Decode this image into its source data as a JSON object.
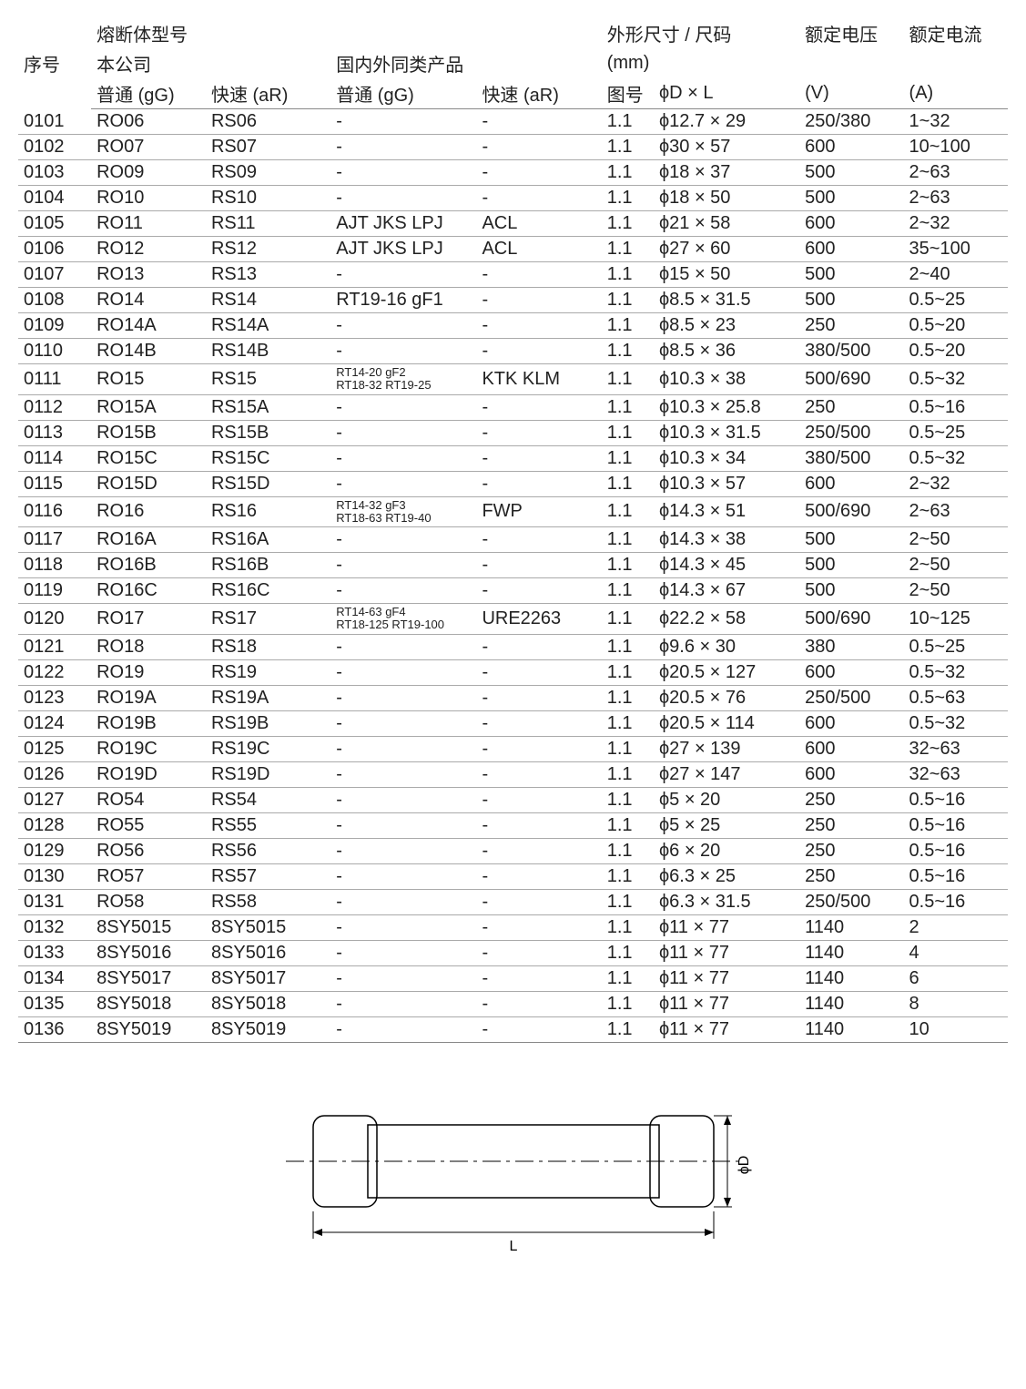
{
  "headers": {
    "seq": "序号",
    "model": "熔断体型号",
    "company": "本公司",
    "domestic": "国内外同类产品",
    "gg": "普通 (gG)",
    "ar": "快速 (aR)",
    "dgg": "普通 (gG)",
    "dar": "快速 (aR)",
    "outline": "外形尺寸 / 尺码",
    "mm": "(mm)",
    "fig": "图号",
    "dxl": "ϕD × L",
    "voltage": "额定电压",
    "vunit": "(V)",
    "current": "额定电流",
    "aunit": "(A)"
  },
  "diagram": {
    "L_label": "L",
    "D_label": "ϕD"
  },
  "rows": [
    {
      "seq": "0101",
      "gg": "RO06",
      "ar": "RS06",
      "dgg": "-",
      "dar": "-",
      "fig": "1.1",
      "dim": "ϕ12.7 × 29",
      "v": "250/380",
      "a": "1~32"
    },
    {
      "seq": "0102",
      "gg": "RO07",
      "ar": "RS07",
      "dgg": "-",
      "dar": "-",
      "fig": "1.1",
      "dim": "ϕ30 × 57",
      "v": "600",
      "a": "10~100"
    },
    {
      "seq": "0103",
      "gg": "RO09",
      "ar": "RS09",
      "dgg": "-",
      "dar": "-",
      "fig": "1.1",
      "dim": "ϕ18 × 37",
      "v": "500",
      "a": "2~63"
    },
    {
      "seq": "0104",
      "gg": "RO10",
      "ar": "RS10",
      "dgg": "-",
      "dar": "-",
      "fig": "1.1",
      "dim": "ϕ18 × 50",
      "v": "500",
      "a": "2~63"
    },
    {
      "seq": "0105",
      "gg": "RO11",
      "ar": "RS11",
      "dgg": "AJT JKS LPJ",
      "dar": "ACL",
      "fig": "1.1",
      "dim": "ϕ21 × 58",
      "v": "600",
      "a": "2~32"
    },
    {
      "seq": "0106",
      "gg": "RO12",
      "ar": "RS12",
      "dgg": "AJT JKS LPJ",
      "dar": "ACL",
      "fig": "1.1",
      "dim": "ϕ27 × 60",
      "v": "600",
      "a": "35~100"
    },
    {
      "seq": "0107",
      "gg": "RO13",
      "ar": "RS13",
      "dgg": "-",
      "dar": "-",
      "fig": "1.1",
      "dim": "ϕ15 × 50",
      "v": "500",
      "a": "2~40"
    },
    {
      "seq": "0108",
      "gg": "RO14",
      "ar": "RS14",
      "dgg": "RT19-16 gF1",
      "dar": "-",
      "fig": "1.1",
      "dim": "ϕ8.5 × 31.5",
      "v": "500",
      "a": "0.5~25"
    },
    {
      "seq": "0109",
      "gg": "RO14A",
      "ar": "RS14A",
      "dgg": "-",
      "dar": "-",
      "fig": "1.1",
      "dim": "ϕ8.5 × 23",
      "v": "250",
      "a": "0.5~20"
    },
    {
      "seq": "0110",
      "gg": "RO14B",
      "ar": "RS14B",
      "dgg": "-",
      "dar": "-",
      "fig": "1.1",
      "dim": "ϕ8.5 × 36",
      "v": "380/500",
      "a": "0.5~20"
    },
    {
      "seq": "0111",
      "gg": "RO15",
      "ar": "RS15",
      "dgg": "RT14-20 gF2\nRT18-32 RT19-25",
      "dgg_small": true,
      "dar": "KTK KLM",
      "fig": "1.1",
      "dim": "ϕ10.3 × 38",
      "v": "500/690",
      "a": "0.5~32"
    },
    {
      "seq": "0112",
      "gg": "RO15A",
      "ar": "RS15A",
      "dgg": "-",
      "dar": "-",
      "fig": "1.1",
      "dim": "ϕ10.3 × 25.8",
      "v": "250",
      "a": "0.5~16"
    },
    {
      "seq": "0113",
      "gg": "RO15B",
      "ar": "RS15B",
      "dgg": "-",
      "dar": "-",
      "fig": "1.1",
      "dim": "ϕ10.3 × 31.5",
      "v": "250/500",
      "a": "0.5~25"
    },
    {
      "seq": "0114",
      "gg": "RO15C",
      "ar": "RS15C",
      "dgg": "-",
      "dar": "-",
      "fig": "1.1",
      "dim": "ϕ10.3 × 34",
      "v": "380/500",
      "a": "0.5~32"
    },
    {
      "seq": "0115",
      "gg": "RO15D",
      "ar": "RS15D",
      "dgg": "-",
      "dar": "-",
      "fig": "1.1",
      "dim": "ϕ10.3 × 57",
      "v": "600",
      "a": "2~32"
    },
    {
      "seq": "0116",
      "gg": "RO16",
      "ar": "RS16",
      "dgg": "RT14-32 gF3\nRT18-63 RT19-40",
      "dgg_small": true,
      "dar": "FWP",
      "fig": "1.1",
      "dim": "ϕ14.3 × 51",
      "v": "500/690",
      "a": "2~63"
    },
    {
      "seq": "0117",
      "gg": "RO16A",
      "ar": "RS16A",
      "dgg": "-",
      "dar": "-",
      "fig": "1.1",
      "dim": "ϕ14.3 × 38",
      "v": "500",
      "a": "2~50"
    },
    {
      "seq": "0118",
      "gg": "RO16B",
      "ar": "RS16B",
      "dgg": "-",
      "dar": "-",
      "fig": "1.1",
      "dim": "ϕ14.3 × 45",
      "v": "500",
      "a": "2~50"
    },
    {
      "seq": "0119",
      "gg": "RO16C",
      "ar": "RS16C",
      "dgg": "-",
      "dar": "-",
      "fig": "1.1",
      "dim": "ϕ14.3 × 67",
      "v": "500",
      "a": "2~50"
    },
    {
      "seq": "0120",
      "gg": "RO17",
      "ar": "RS17",
      "dgg": "RT14-63 gF4\nRT18-125 RT19-100",
      "dgg_small": true,
      "dar": "URE2263",
      "fig": "1.1",
      "dim": "ϕ22.2 × 58",
      "v": "500/690",
      "a": "10~125"
    },
    {
      "seq": "0121",
      "gg": "RO18",
      "ar": "RS18",
      "dgg": "-",
      "dar": "-",
      "fig": "1.1",
      "dim": "ϕ9.6 × 30",
      "v": "380",
      "a": "0.5~25"
    },
    {
      "seq": "0122",
      "gg": "RO19",
      "ar": "RS19",
      "dgg": "-",
      "dar": "-",
      "fig": "1.1",
      "dim": "ϕ20.5 × 127",
      "v": "600",
      "a": "0.5~32"
    },
    {
      "seq": "0123",
      "gg": "RO19A",
      "ar": "RS19A",
      "dgg": "-",
      "dar": "-",
      "fig": "1.1",
      "dim": "ϕ20.5 × 76",
      "v": "250/500",
      "a": "0.5~63"
    },
    {
      "seq": "0124",
      "gg": "RO19B",
      "ar": "RS19B",
      "dgg": "-",
      "dar": "-",
      "fig": "1.1",
      "dim": "ϕ20.5 × 114",
      "v": "600",
      "a": "0.5~32"
    },
    {
      "seq": "0125",
      "gg": "RO19C",
      "ar": "RS19C",
      "dgg": "-",
      "dar": "-",
      "fig": "1.1",
      "dim": "ϕ27 × 139",
      "v": "600",
      "a": "32~63"
    },
    {
      "seq": "0126",
      "gg": "RO19D",
      "ar": "RS19D",
      "dgg": "-",
      "dar": "-",
      "fig": "1.1",
      "dim": "ϕ27 × 147",
      "v": "600",
      "a": "32~63"
    },
    {
      "seq": "0127",
      "gg": "RO54",
      "ar": "RS54",
      "dgg": "-",
      "dar": "-",
      "fig": "1.1",
      "dim": "ϕ5 × 20",
      "v": "250",
      "a": "0.5~16"
    },
    {
      "seq": "0128",
      "gg": "RO55",
      "ar": "RS55",
      "dgg": "-",
      "dar": "-",
      "fig": "1.1",
      "dim": "ϕ5 × 25",
      "v": "250",
      "a": "0.5~16"
    },
    {
      "seq": "0129",
      "gg": "RO56",
      "ar": "RS56",
      "dgg": "-",
      "dar": "-",
      "fig": "1.1",
      "dim": "ϕ6 × 20",
      "v": "250",
      "a": "0.5~16"
    },
    {
      "seq": "0130",
      "gg": "RO57",
      "ar": "RS57",
      "dgg": "-",
      "dar": "-",
      "fig": "1.1",
      "dim": "ϕ6.3 × 25",
      "v": "250",
      "a": "0.5~16"
    },
    {
      "seq": "0131",
      "gg": "RO58",
      "ar": "RS58",
      "dgg": "-",
      "dar": "-",
      "fig": "1.1",
      "dim": "ϕ6.3 × 31.5",
      "v": "250/500",
      "a": "0.5~16"
    },
    {
      "seq": "0132",
      "gg": "8SY5015",
      "ar": "8SY5015",
      "dgg": "-",
      "dar": "-",
      "fig": "1.1",
      "dim": "ϕ11 × 77",
      "v": "1140",
      "a": "2"
    },
    {
      "seq": "0133",
      "gg": "8SY5016",
      "ar": "8SY5016",
      "dgg": "-",
      "dar": "-",
      "fig": "1.1",
      "dim": "ϕ11 × 77",
      "v": "1140",
      "a": "4"
    },
    {
      "seq": "0134",
      "gg": "8SY5017",
      "ar": "8SY5017",
      "dgg": "-",
      "dar": "-",
      "fig": "1.1",
      "dim": "ϕ11 × 77",
      "v": "1140",
      "a": "6"
    },
    {
      "seq": "0135",
      "gg": "8SY5018",
      "ar": "8SY5018",
      "dgg": "-",
      "dar": "-",
      "fig": "1.1",
      "dim": "ϕ11 × 77",
      "v": "1140",
      "a": "8"
    },
    {
      "seq": "0136",
      "gg": "8SY5019",
      "ar": "8SY5019",
      "dgg": "-",
      "dar": "-",
      "fig": "1.1",
      "dim": "ϕ11 × 77",
      "v": "1140",
      "a": "10"
    }
  ]
}
